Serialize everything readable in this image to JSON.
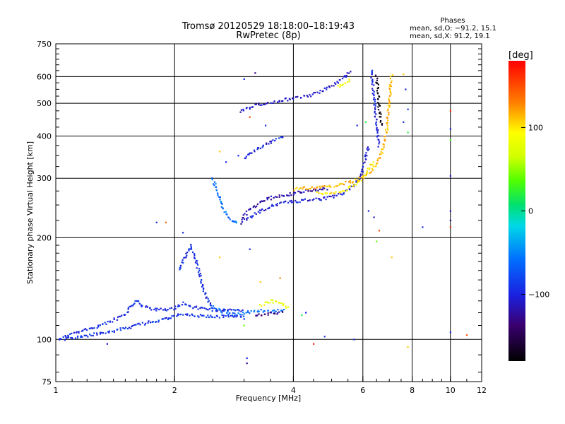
{
  "chart_data": {
    "type": "scatter",
    "title": "Tromsø 20120529 18:18:00–18:19:43",
    "subtitle": "RwPretec (8p)",
    "xlabel": "Frequency [MHz]",
    "ylabel": "Stationary phase Virtual Height [km]",
    "xscale": "log",
    "yscale": "log",
    "xlim": [
      1,
      12
    ],
    "ylim": [
      75,
      750
    ],
    "grid": true,
    "x_ticks": [
      "1",
      "2",
      "4",
      "6",
      "8",
      "10",
      "12"
    ],
    "x_tick_values": [
      1,
      2,
      4,
      6,
      8,
      10,
      12
    ],
    "y_ticks": [
      "75",
      "100",
      "200",
      "300",
      "400",
      "500",
      "600",
      "750"
    ],
    "y_tick_values": [
      75,
      100,
      200,
      300,
      400,
      500,
      600,
      750
    ],
    "phases_box": {
      "title": "Phases",
      "line1": "mean, sd,O:  −91.2, 15.1",
      "line2": "mean, sd,X:  91.2, 19.1"
    },
    "colorbar": {
      "label": "[deg]",
      "min": -180,
      "max": 180,
      "ticks": [
        "100",
        "0",
        "−100"
      ],
      "tick_values": [
        100,
        0,
        -100
      ]
    },
    "traces": [
      {
        "phase": -95,
        "points": [
          [
            1.02,
            100
          ],
          [
            1.1,
            104
          ],
          [
            1.2,
            107
          ],
          [
            1.3,
            110
          ],
          [
            1.4,
            114
          ],
          [
            1.5,
            118
          ],
          [
            1.55,
            125
          ],
          [
            1.6,
            131
          ],
          [
            1.65,
            126
          ],
          [
            1.75,
            123
          ],
          [
            1.9,
            122
          ],
          [
            2.0,
            124
          ],
          [
            2.1,
            128
          ],
          [
            2.2,
            125
          ],
          [
            2.4,
            123
          ],
          [
            2.6,
            122
          ],
          [
            2.8,
            122
          ],
          [
            3.0,
            122
          ]
        ]
      },
      {
        "phase": -90,
        "points": [
          [
            1.05,
            100
          ],
          [
            1.15,
            102
          ],
          [
            1.3,
            104
          ],
          [
            1.45,
            107
          ],
          [
            1.6,
            110
          ],
          [
            1.75,
            113
          ],
          [
            1.9,
            115
          ],
          [
            2.05,
            118
          ],
          [
            2.2,
            118
          ],
          [
            2.4,
            117
          ],
          [
            2.6,
            117
          ],
          [
            2.8,
            117
          ],
          [
            3.0,
            117
          ]
        ]
      },
      {
        "phase": -95,
        "points": [
          [
            2.05,
            160
          ],
          [
            2.1,
            170
          ],
          [
            2.15,
            180
          ],
          [
            2.2,
            190
          ],
          [
            2.25,
            175
          ],
          [
            2.3,
            160
          ],
          [
            2.35,
            145
          ],
          [
            2.4,
            135
          ],
          [
            2.45,
            128
          ],
          [
            2.5,
            124
          ]
        ]
      },
      {
        "phase": -60,
        "points": [
          [
            2.5,
            125
          ],
          [
            2.6,
            122
          ],
          [
            2.7,
            120
          ],
          [
            2.8,
            119
          ],
          [
            2.9,
            119
          ],
          [
            3.0,
            120
          ],
          [
            3.2,
            121
          ],
          [
            3.4,
            122
          ],
          [
            3.6,
            121
          ],
          [
            3.8,
            123
          ]
        ]
      },
      {
        "phase": -130,
        "points": [
          [
            3.2,
            118
          ],
          [
            3.4,
            119
          ],
          [
            3.6,
            119
          ],
          [
            3.8,
            120
          ]
        ]
      },
      {
        "phase": 85,
        "points": [
          [
            3.3,
            126
          ],
          [
            3.5,
            130
          ],
          [
            3.7,
            128
          ],
          [
            3.9,
            124
          ]
        ]
      },
      {
        "phase": -60,
        "points": [
          [
            2.5,
            300
          ],
          [
            2.55,
            280
          ],
          [
            2.6,
            262
          ],
          [
            2.65,
            245
          ],
          [
            2.7,
            235
          ],
          [
            2.75,
            228
          ],
          [
            2.8,
            225
          ],
          [
            2.85,
            222
          ],
          [
            2.9,
            222
          ]
        ]
      },
      {
        "phase": -120,
        "points": [
          [
            2.95,
            222
          ],
          [
            3.0,
            232
          ],
          [
            3.1,
            242
          ],
          [
            3.2,
            248
          ],
          [
            3.3,
            254
          ],
          [
            3.4,
            258
          ],
          [
            3.5,
            262
          ],
          [
            3.6,
            265
          ],
          [
            3.7,
            267
          ],
          [
            3.9,
            268
          ],
          [
            4.1,
            272
          ],
          [
            4.3,
            275
          ],
          [
            4.5,
            276
          ],
          [
            4.7,
            278
          ],
          [
            4.9,
            280
          ]
        ]
      },
      {
        "phase": -105,
        "points": [
          [
            3.0,
            225
          ],
          [
            3.2,
            235
          ],
          [
            3.4,
            244
          ],
          [
            3.6,
            250
          ],
          [
            3.8,
            254
          ],
          [
            4.0,
            256
          ],
          [
            4.3,
            258
          ],
          [
            4.6,
            260
          ],
          [
            4.9,
            262
          ],
          [
            5.1,
            266
          ],
          [
            5.3,
            270
          ],
          [
            5.5,
            276
          ],
          [
            5.7,
            285
          ],
          [
            5.9,
            300
          ],
          [
            6.0,
            320
          ],
          [
            6.1,
            345
          ],
          [
            6.2,
            375
          ]
        ]
      },
      {
        "phase": 115,
        "points": [
          [
            4.0,
            278
          ],
          [
            4.2,
            280
          ],
          [
            4.4,
            281
          ],
          [
            4.6,
            282
          ],
          [
            4.8,
            284
          ],
          [
            5.0,
            285
          ],
          [
            5.2,
            287
          ],
          [
            5.4,
            290
          ],
          [
            5.6,
            293
          ],
          [
            5.8,
            297
          ],
          [
            6.0,
            302
          ],
          [
            6.2,
            310
          ],
          [
            6.4,
            322
          ],
          [
            6.55,
            338
          ],
          [
            6.7,
            358
          ],
          [
            6.8,
            385
          ],
          [
            6.9,
            420
          ],
          [
            6.95,
            460
          ],
          [
            7.0,
            510
          ],
          [
            7.05,
            560
          ],
          [
            7.1,
            610
          ]
        ]
      },
      {
        "phase": 100,
        "points": [
          [
            4.6,
            272
          ],
          [
            4.8,
            271
          ],
          [
            5.0,
            271
          ],
          [
            5.2,
            273
          ],
          [
            5.4,
            277
          ],
          [
            5.6,
            283
          ],
          [
            5.8,
            291
          ],
          [
            6.0,
            302
          ],
          [
            6.2,
            318
          ],
          [
            6.4,
            338
          ]
        ]
      },
      {
        "phase": -100,
        "points": [
          [
            3.0,
            345
          ],
          [
            3.1,
            355
          ],
          [
            3.2,
            363
          ],
          [
            3.3,
            370
          ],
          [
            3.4,
            377
          ],
          [
            3.5,
            384
          ],
          [
            3.6,
            390
          ],
          [
            3.7,
            395
          ],
          [
            3.8,
            398
          ]
        ]
      },
      {
        "phase": -110,
        "points": [
          [
            2.95,
            470
          ],
          [
            3.0,
            480
          ],
          [
            3.2,
            492
          ],
          [
            3.4,
            500
          ],
          [
            3.6,
            507
          ],
          [
            3.8,
            513
          ],
          [
            4.0,
            517
          ],
          [
            4.2,
            521
          ],
          [
            4.4,
            527
          ],
          [
            4.6,
            537
          ],
          [
            4.8,
            550
          ],
          [
            5.0,
            565
          ],
          [
            5.2,
            580
          ],
          [
            5.4,
            600
          ],
          [
            5.6,
            625
          ]
        ]
      },
      {
        "phase": 80,
        "points": [
          [
            5.2,
            560
          ],
          [
            5.4,
            575
          ],
          [
            5.6,
            590
          ]
        ]
      },
      {
        "phase": -100,
        "points": [
          [
            6.3,
            630
          ],
          [
            6.35,
            580
          ],
          [
            6.4,
            520
          ],
          [
            6.45,
            470
          ],
          [
            6.5,
            430
          ],
          [
            6.55,
            395
          ],
          [
            6.6,
            370
          ]
        ]
      },
      {
        "phase": -170,
        "points": [
          [
            6.5,
            600
          ],
          [
            6.55,
            540
          ],
          [
            6.6,
            480
          ],
          [
            6.7,
            430
          ]
        ]
      }
    ],
    "scatter_points": [
      {
        "x": 3.0,
        "y": 590,
        "phase": -90
      },
      {
        "x": 3.2,
        "y": 615,
        "phase": -130
      },
      {
        "x": 3.4,
        "y": 430,
        "phase": -95
      },
      {
        "x": 2.6,
        "y": 360,
        "phase": 110
      },
      {
        "x": 2.7,
        "y": 335,
        "phase": -100
      },
      {
        "x": 3.1,
        "y": 455,
        "phase": 150
      },
      {
        "x": 2.9,
        "y": 350,
        "phase": -100
      },
      {
        "x": 1.8,
        "y": 222,
        "phase": -100
      },
      {
        "x": 1.9,
        "y": 222,
        "phase": 140
      },
      {
        "x": 2.1,
        "y": 207,
        "phase": -100
      },
      {
        "x": 2.6,
        "y": 175,
        "phase": 110
      },
      {
        "x": 3.1,
        "y": 185,
        "phase": -100
      },
      {
        "x": 3.05,
        "y": 88,
        "phase": -100
      },
      {
        "x": 3.05,
        "y": 85,
        "phase": -130
      },
      {
        "x": 3.0,
        "y": 115,
        "phase": -95
      },
      {
        "x": 3.0,
        "y": 110,
        "phase": 40
      },
      {
        "x": 3.7,
        "y": 152,
        "phase": 130
      },
      {
        "x": 3.3,
        "y": 148,
        "phase": 110
      },
      {
        "x": 1.35,
        "y": 97,
        "phase": -100
      },
      {
        "x": 4.5,
        "y": 97,
        "phase": 170
      },
      {
        "x": 4.8,
        "y": 102,
        "phase": -90
      },
      {
        "x": 5.7,
        "y": 100,
        "phase": -100
      },
      {
        "x": 4.2,
        "y": 118,
        "phase": 20
      },
      {
        "x": 4.3,
        "y": 120,
        "phase": -100
      },
      {
        "x": 5.8,
        "y": 430,
        "phase": -100
      },
      {
        "x": 6.2,
        "y": 240,
        "phase": -100
      },
      {
        "x": 6.4,
        "y": 230,
        "phase": -120
      },
      {
        "x": 6.6,
        "y": 210,
        "phase": 150
      },
      {
        "x": 6.5,
        "y": 195,
        "phase": 40
      },
      {
        "x": 6.1,
        "y": 440,
        "phase": 20
      },
      {
        "x": 7.6,
        "y": 610,
        "phase": 110
      },
      {
        "x": 7.7,
        "y": 550,
        "phase": -100
      },
      {
        "x": 7.8,
        "y": 480,
        "phase": -90
      },
      {
        "x": 7.8,
        "y": 410,
        "phase": 20
      },
      {
        "x": 7.6,
        "y": 440,
        "phase": -100
      },
      {
        "x": 7.1,
        "y": 175,
        "phase": 110
      },
      {
        "x": 7.8,
        "y": 95,
        "phase": 110
      },
      {
        "x": 8.5,
        "y": 215,
        "phase": -100
      },
      {
        "x": 10.0,
        "y": 475,
        "phase": 160
      },
      {
        "x": 10.0,
        "y": 420,
        "phase": -100
      },
      {
        "x": 10.0,
        "y": 390,
        "phase": 30
      },
      {
        "x": 10.0,
        "y": 305,
        "phase": -100
      },
      {
        "x": 10.0,
        "y": 240,
        "phase": -110
      },
      {
        "x": 10.0,
        "y": 215,
        "phase": 160
      },
      {
        "x": 10.0,
        "y": 225,
        "phase": -130
      },
      {
        "x": 10.0,
        "y": 105,
        "phase": -100
      },
      {
        "x": 11.0,
        "y": 103,
        "phase": 150
      }
    ]
  }
}
